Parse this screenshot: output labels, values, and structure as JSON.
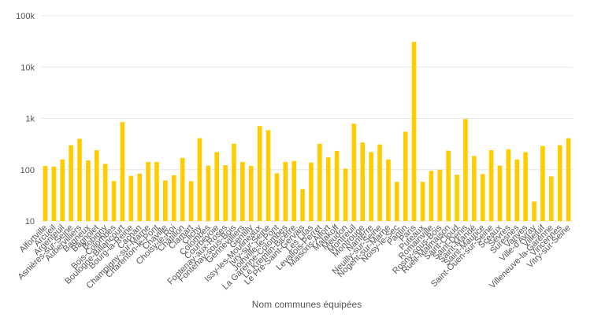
{
  "chart_data": {
    "type": "bar",
    "scale": "log",
    "ylim": [
      10,
      100000
    ],
    "yticks": [
      {
        "value": 10,
        "label": "10"
      },
      {
        "value": 100,
        "label": "100"
      },
      {
        "value": 1000,
        "label": "1k"
      },
      {
        "value": 10000,
        "label": "10k"
      },
      {
        "value": 100000,
        "label": "100k"
      }
    ],
    "xlabel": "Nom communes équipées",
    "ylabel": "",
    "title": "",
    "grid": true,
    "bar_color": "#FFCC00",
    "categories": [
      "Alfortville",
      "Arcueil",
      "Argenteuil",
      "Asnières-sur-Seine",
      "Aubervilliers",
      "Bagneux",
      "Bagnolet",
      "Bobigny",
      "Bois-Colombes",
      "Boulogne-Billancourt",
      "Bourg-la-Reine",
      "Cachan",
      "Champigny-sur-Marne",
      "Charenton-le-Pont",
      "Chaville",
      "Choisy-le-Roi",
      "Châtillon",
      "Clamart",
      "Clichy",
      "Colombes",
      "Courbevoie",
      "Fontenay-aux-Roses",
      "Fontenay-sous-Bois",
      "Gennevilliers",
      "Gentilly",
      "Issy-les-Moulineaux",
      "Ivry-sur-Seine",
      "Joinville-le-Pont",
      "La Garenne-Colombes",
      "Le Kremlin-Bicêtre",
      "Le Pré-Saint-Gervais",
      "Les Lilas",
      "Levallois-Perret",
      "Maisons-Alfort",
      "Malakoff",
      "Meudon",
      "Montreuil",
      "Montrouge",
      "Nanterre",
      "Neuilly-sur-Seine",
      "Nogent-sur-Marne",
      "Noisy-le-Sec",
      "Pantin",
      "Paris",
      "Puteaux",
      "Romainville",
      "Rosny-sous-Bois",
      "Rueil-Malmaison",
      "Saint-Cloud",
      "Saint-Denis",
      "Saint-Mandé",
      "Saint-Maurice",
      "Saint-Ouen-sur-Seine",
      "Sceaux",
      "Sèvres",
      "Suresnes",
      "Vanves",
      "Ville-d'Avray",
      "Villejuif",
      "Villeneuve-la-Garenne",
      "Vincennes",
      "Vitry-sur-Seine"
    ],
    "values": [
      118,
      115,
      158,
      300,
      400,
      152,
      240,
      130,
      60,
      850,
      76,
      84,
      142,
      142,
      62,
      78,
      170,
      60,
      410,
      120,
      220,
      122,
      320,
      142,
      118,
      710,
      590,
      85,
      142,
      148,
      42,
      138,
      320,
      175,
      232,
      105,
      790,
      340,
      220,
      310,
      158,
      58,
      550,
      31000,
      58,
      95,
      100,
      235,
      80,
      970,
      185,
      82,
      240,
      120,
      250,
      158,
      220,
      24,
      290,
      74,
      300,
      410
    ]
  }
}
